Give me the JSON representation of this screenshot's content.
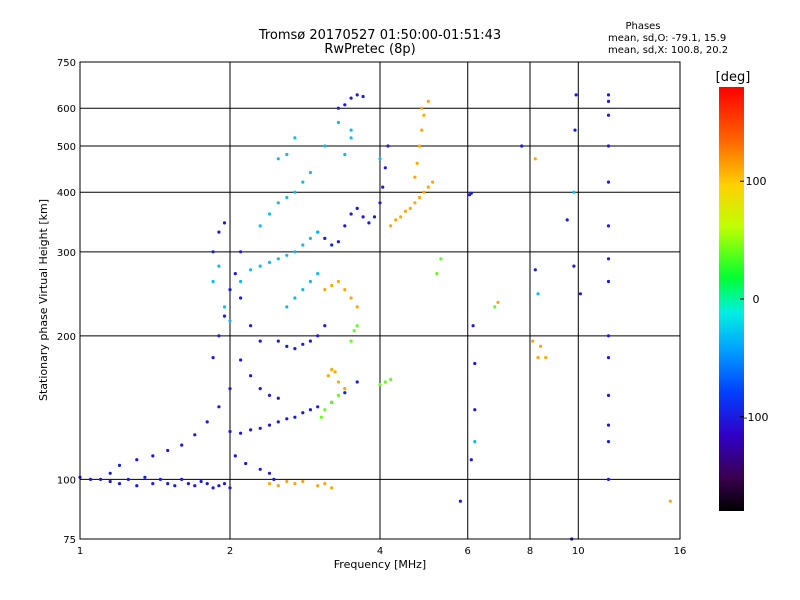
{
  "chart_data": {
    "type": "scatter",
    "title": "Tromsø 20170527 01:50:00-01:51:43",
    "subtitle": "RwPretec (8p)",
    "xlabel": "Frequency [MHz]",
    "ylabel": "Stationary phase Virtual Height [km]",
    "xscale": "log",
    "yscale": "log",
    "xlim": [
      1,
      16
    ],
    "ylim": [
      75,
      750
    ],
    "xticks": [
      1,
      2,
      4,
      6,
      8,
      10,
      16
    ],
    "yticks": [
      75,
      100,
      200,
      300,
      400,
      500,
      600,
      750
    ],
    "vgrid": [
      2,
      4,
      6,
      8,
      10
    ],
    "hgrid": [
      100,
      200,
      300,
      400,
      500,
      600
    ],
    "stats": {
      "heading": "Phases",
      "line_o": "mean, sd,O: -79.1, 15.9",
      "line_x": "mean, sd,X: 100.8, 20.2"
    },
    "colorbar": {
      "label": "[deg]",
      "range": [
        -180,
        180
      ],
      "ticks": [
        100,
        0,
        -100
      ]
    },
    "series": [
      {
        "color_value": -100,
        "points": [
          [
            1.0,
            101
          ],
          [
            1.05,
            100
          ],
          [
            1.1,
            100
          ],
          [
            1.15,
            99
          ],
          [
            1.2,
            98
          ],
          [
            1.25,
            100
          ],
          [
            1.3,
            97
          ],
          [
            1.35,
            101
          ],
          [
            1.4,
            98
          ],
          [
            1.45,
            100
          ],
          [
            1.5,
            98
          ],
          [
            1.55,
            97
          ],
          [
            1.6,
            100
          ],
          [
            1.65,
            98
          ],
          [
            1.7,
            97
          ],
          [
            1.75,
            99
          ],
          [
            1.8,
            98
          ],
          [
            1.85,
            96
          ],
          [
            1.9,
            97
          ],
          [
            1.95,
            98
          ],
          [
            2.0,
            96
          ],
          [
            1.15,
            103
          ],
          [
            1.2,
            107
          ],
          [
            1.3,
            110
          ],
          [
            1.4,
            112
          ],
          [
            1.5,
            115
          ],
          [
            1.6,
            118
          ],
          [
            1.7,
            124
          ],
          [
            1.8,
            132
          ],
          [
            1.9,
            142
          ],
          [
            2.0,
            155
          ],
          [
            1.85,
            180
          ],
          [
            1.9,
            200
          ],
          [
            1.95,
            220
          ],
          [
            2.0,
            250
          ],
          [
            2.05,
            270
          ],
          [
            1.85,
            300
          ],
          [
            1.9,
            330
          ],
          [
            1.95,
            345
          ],
          [
            2.1,
            300
          ],
          [
            2.1,
            240
          ],
          [
            2.2,
            210
          ],
          [
            2.3,
            195
          ],
          [
            2.1,
            178
          ],
          [
            2.2,
            165
          ],
          [
            2.3,
            155
          ],
          [
            2.4,
            150
          ],
          [
            2.5,
            148
          ],
          [
            2.0,
            126
          ],
          [
            2.1,
            125
          ],
          [
            2.2,
            127
          ],
          [
            2.3,
            128
          ],
          [
            2.4,
            130
          ],
          [
            2.5,
            132
          ],
          [
            2.6,
            134
          ],
          [
            2.7,
            135
          ],
          [
            2.8,
            138
          ],
          [
            2.9,
            140
          ],
          [
            3.0,
            142
          ],
          [
            3.2,
            145
          ],
          [
            3.4,
            152
          ],
          [
            3.6,
            160
          ],
          [
            2.05,
            112
          ],
          [
            2.15,
            108
          ],
          [
            2.3,
            105
          ],
          [
            2.4,
            103
          ],
          [
            2.45,
            100
          ],
          [
            2.5,
            195
          ],
          [
            2.6,
            190
          ],
          [
            2.7,
            188
          ],
          [
            2.8,
            192
          ],
          [
            2.9,
            195
          ],
          [
            3.0,
            200
          ],
          [
            3.1,
            210
          ],
          [
            3.0,
            330
          ],
          [
            3.1,
            320
          ],
          [
            3.2,
            310
          ],
          [
            3.3,
            315
          ],
          [
            3.4,
            340
          ],
          [
            3.5,
            360
          ],
          [
            3.6,
            370
          ],
          [
            3.7,
            355
          ],
          [
            3.8,
            345
          ],
          [
            3.9,
            355
          ],
          [
            4.0,
            380
          ],
          [
            4.05,
            410
          ],
          [
            4.1,
            450
          ],
          [
            4.15,
            500
          ],
          [
            3.3,
            600
          ],
          [
            3.4,
            610
          ],
          [
            3.5,
            630
          ],
          [
            3.6,
            640
          ],
          [
            3.7,
            635
          ],
          [
            6.1,
            398
          ],
          [
            6.15,
            210
          ],
          [
            6.2,
            175
          ],
          [
            6.2,
            140
          ],
          [
            6.1,
            110
          ],
          [
            6.05,
            395
          ],
          [
            7.7,
            500
          ],
          [
            8.2,
            275
          ],
          [
            9.5,
            350
          ],
          [
            9.8,
            280
          ],
          [
            9.7,
            75
          ],
          [
            9.9,
            640
          ],
          [
            9.85,
            540
          ],
          [
            11.5,
            640
          ],
          [
            11.5,
            620
          ],
          [
            11.5,
            580
          ],
          [
            11.5,
            500
          ],
          [
            11.5,
            420
          ],
          [
            11.5,
            340
          ],
          [
            11.5,
            290
          ],
          [
            11.5,
            260
          ],
          [
            11.5,
            200
          ],
          [
            11.5,
            180
          ],
          [
            11.5,
            150
          ],
          [
            11.5,
            130
          ],
          [
            11.5,
            120
          ],
          [
            11.5,
            100
          ],
          [
            5.8,
            90
          ],
          [
            10.1,
            245
          ]
        ]
      },
      {
        "color_value": -30,
        "points": [
          [
            1.85,
            260
          ],
          [
            1.9,
            280
          ],
          [
            1.95,
            230
          ],
          [
            2.0,
            215
          ],
          [
            2.1,
            260
          ],
          [
            2.2,
            275
          ],
          [
            2.3,
            280
          ],
          [
            2.4,
            285
          ],
          [
            2.5,
            290
          ],
          [
            2.6,
            295
          ],
          [
            2.7,
            300
          ],
          [
            2.8,
            310
          ],
          [
            2.9,
            320
          ],
          [
            3.0,
            330
          ],
          [
            2.3,
            340
          ],
          [
            2.4,
            360
          ],
          [
            2.5,
            380
          ],
          [
            2.6,
            390
          ],
          [
            2.7,
            400
          ],
          [
            2.8,
            420
          ],
          [
            2.9,
            440
          ],
          [
            3.1,
            500
          ],
          [
            3.3,
            560
          ],
          [
            3.5,
            540
          ],
          [
            2.6,
            230
          ],
          [
            2.7,
            240
          ],
          [
            2.8,
            250
          ],
          [
            2.9,
            260
          ],
          [
            3.0,
            270
          ],
          [
            2.5,
            470
          ],
          [
            2.6,
            480
          ],
          [
            2.7,
            520
          ],
          [
            3.4,
            480
          ],
          [
            3.5,
            520
          ],
          [
            4.0,
            470
          ],
          [
            6.2,
            120
          ],
          [
            8.3,
            245
          ],
          [
            9.8,
            400
          ]
        ]
      },
      {
        "color_value": 40,
        "points": [
          [
            3.05,
            135
          ],
          [
            3.1,
            140
          ],
          [
            3.2,
            145
          ],
          [
            3.3,
            150
          ],
          [
            3.4,
            155
          ],
          [
            4.0,
            158
          ],
          [
            4.1,
            160
          ],
          [
            4.2,
            162
          ],
          [
            3.5,
            195
          ],
          [
            3.55,
            205
          ],
          [
            3.6,
            210
          ],
          [
            5.2,
            270
          ],
          [
            5.3,
            290
          ],
          [
            6.8,
            230
          ]
        ]
      },
      {
        "color_value": 110,
        "points": [
          [
            2.4,
            98
          ],
          [
            2.5,
            97
          ],
          [
            2.6,
            99
          ],
          [
            2.7,
            98
          ],
          [
            2.8,
            99
          ],
          [
            3.0,
            97
          ],
          [
            3.1,
            98
          ],
          [
            3.2,
            96
          ],
          [
            3.1,
            250
          ],
          [
            3.2,
            255
          ],
          [
            3.3,
            260
          ],
          [
            3.4,
            250
          ],
          [
            3.5,
            240
          ],
          [
            3.6,
            230
          ],
          [
            3.15,
            165
          ],
          [
            3.2,
            170
          ],
          [
            3.25,
            168
          ],
          [
            3.3,
            160
          ],
          [
            3.4,
            155
          ],
          [
            4.2,
            340
          ],
          [
            4.3,
            350
          ],
          [
            4.4,
            355
          ],
          [
            4.5,
            365
          ],
          [
            4.6,
            370
          ],
          [
            4.7,
            380
          ],
          [
            4.8,
            390
          ],
          [
            4.9,
            400
          ],
          [
            5.0,
            410
          ],
          [
            5.1,
            420
          ],
          [
            4.7,
            430
          ],
          [
            4.75,
            460
          ],
          [
            4.8,
            500
          ],
          [
            4.85,
            540
          ],
          [
            4.9,
            580
          ],
          [
            4.85,
            600
          ],
          [
            5.0,
            620
          ],
          [
            8.1,
            195
          ],
          [
            8.4,
            190
          ],
          [
            8.6,
            180
          ],
          [
            8.3,
            180
          ],
          [
            15.3,
            90
          ],
          [
            6.9,
            235
          ],
          [
            8.2,
            470
          ]
        ]
      }
    ]
  }
}
